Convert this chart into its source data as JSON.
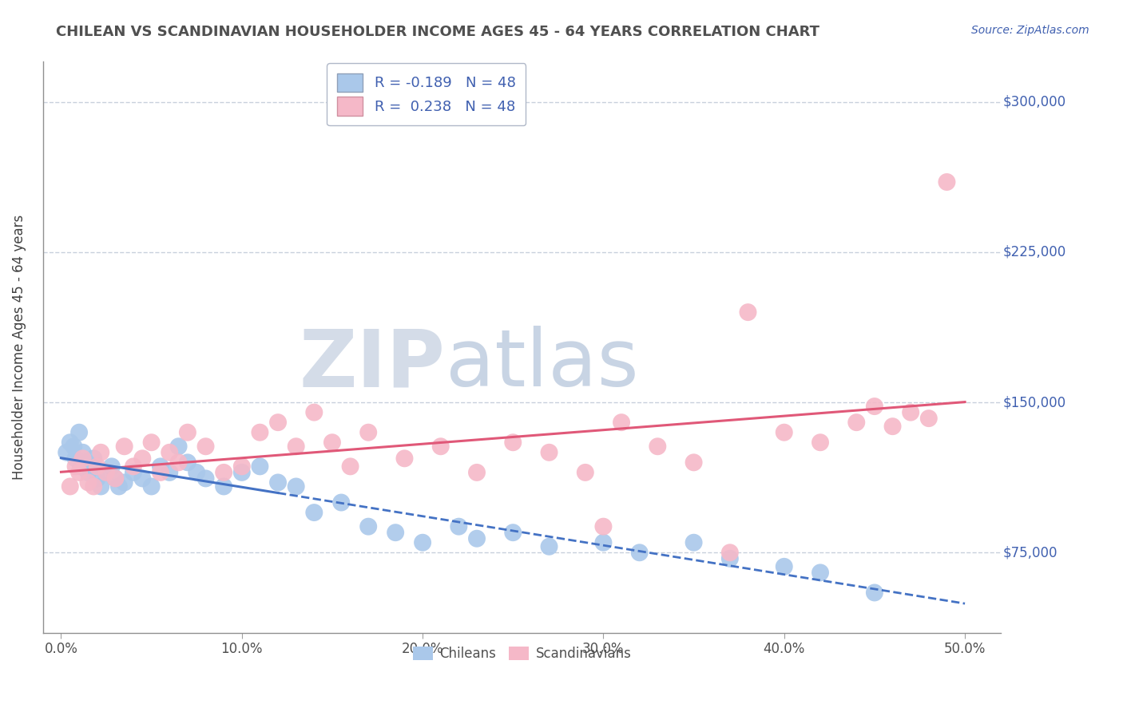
{
  "title": "CHILEAN VS SCANDINAVIAN HOUSEHOLDER INCOME AGES 45 - 64 YEARS CORRELATION CHART",
  "source_text": "Source: ZipAtlas.com",
  "ylabel": "Householder Income Ages 45 - 64 years",
  "xlabel_ticks": [
    "0.0%",
    "10.0%",
    "20.0%",
    "30.0%",
    "40.0%",
    "50.0%"
  ],
  "xlabel_vals": [
    0.0,
    10.0,
    20.0,
    30.0,
    40.0,
    50.0
  ],
  "ylabel_ticks": [
    "$75,000",
    "$150,000",
    "$225,000",
    "$300,000"
  ],
  "ylabel_vals": [
    75000,
    150000,
    225000,
    300000
  ],
  "xlim": [
    -1,
    52
  ],
  "ylim": [
    35000,
    320000
  ],
  "chilean_R": -0.189,
  "chilean_N": 48,
  "scandinavian_R": 0.238,
  "scandinavian_N": 48,
  "chilean_color": "#aac8ea",
  "chilean_edge": "#aac8ea",
  "scandinavian_color": "#f5b8c8",
  "scandinavian_edge": "#f5b8c8",
  "line_chilean_color": "#4472c4",
  "line_scandinavian_color": "#e05878",
  "watermark_zip_color": "#d4dce8",
  "watermark_atlas_color": "#c8d4e4",
  "background_color": "#ffffff",
  "grid_color": "#c8d0dc",
  "title_color": "#505050",
  "label_color": "#4060b0",
  "chilean_x": [
    0.3,
    0.5,
    0.7,
    0.8,
    1.0,
    1.1,
    1.2,
    1.4,
    1.5,
    1.7,
    1.8,
    2.0,
    2.2,
    2.5,
    2.8,
    3.0,
    3.2,
    3.5,
    4.0,
    4.5,
    5.0,
    5.5,
    6.0,
    6.5,
    7.0,
    7.5,
    8.0,
    9.0,
    10.0,
    11.0,
    12.0,
    13.0,
    14.0,
    15.5,
    17.0,
    18.5,
    20.0,
    22.0,
    23.0,
    25.0,
    27.0,
    30.0,
    32.0,
    35.0,
    37.0,
    40.0,
    42.0,
    45.0
  ],
  "chilean_y": [
    125000,
    130000,
    128000,
    122000,
    135000,
    118000,
    125000,
    120000,
    115000,
    118000,
    122000,
    112000,
    108000,
    115000,
    118000,
    112000,
    108000,
    110000,
    115000,
    112000,
    108000,
    118000,
    115000,
    128000,
    120000,
    115000,
    112000,
    108000,
    115000,
    118000,
    110000,
    108000,
    95000,
    100000,
    88000,
    85000,
    80000,
    88000,
    82000,
    85000,
    78000,
    80000,
    75000,
    80000,
    72000,
    68000,
    65000,
    55000
  ],
  "scandinavian_x": [
    0.5,
    0.8,
    1.0,
    1.2,
    1.5,
    1.8,
    2.0,
    2.2,
    2.5,
    3.0,
    3.5,
    4.0,
    4.5,
    5.0,
    5.5,
    6.0,
    6.5,
    7.0,
    8.0,
    9.0,
    10.0,
    11.0,
    12.0,
    13.0,
    14.0,
    15.0,
    16.0,
    17.0,
    19.0,
    21.0,
    23.0,
    25.0,
    27.0,
    29.0,
    31.0,
    33.0,
    35.0,
    38.0,
    40.0,
    42.0,
    44.0,
    45.0,
    46.0,
    47.0,
    48.0,
    30.0,
    37.0,
    49.0
  ],
  "scandinavian_y": [
    108000,
    118000,
    115000,
    122000,
    110000,
    108000,
    118000,
    125000,
    115000,
    112000,
    128000,
    118000,
    122000,
    130000,
    115000,
    125000,
    120000,
    135000,
    128000,
    115000,
    118000,
    135000,
    140000,
    128000,
    145000,
    130000,
    118000,
    135000,
    122000,
    128000,
    115000,
    130000,
    125000,
    115000,
    140000,
    128000,
    120000,
    195000,
    135000,
    130000,
    140000,
    148000,
    138000,
    145000,
    142000,
    88000,
    75000,
    260000
  ]
}
